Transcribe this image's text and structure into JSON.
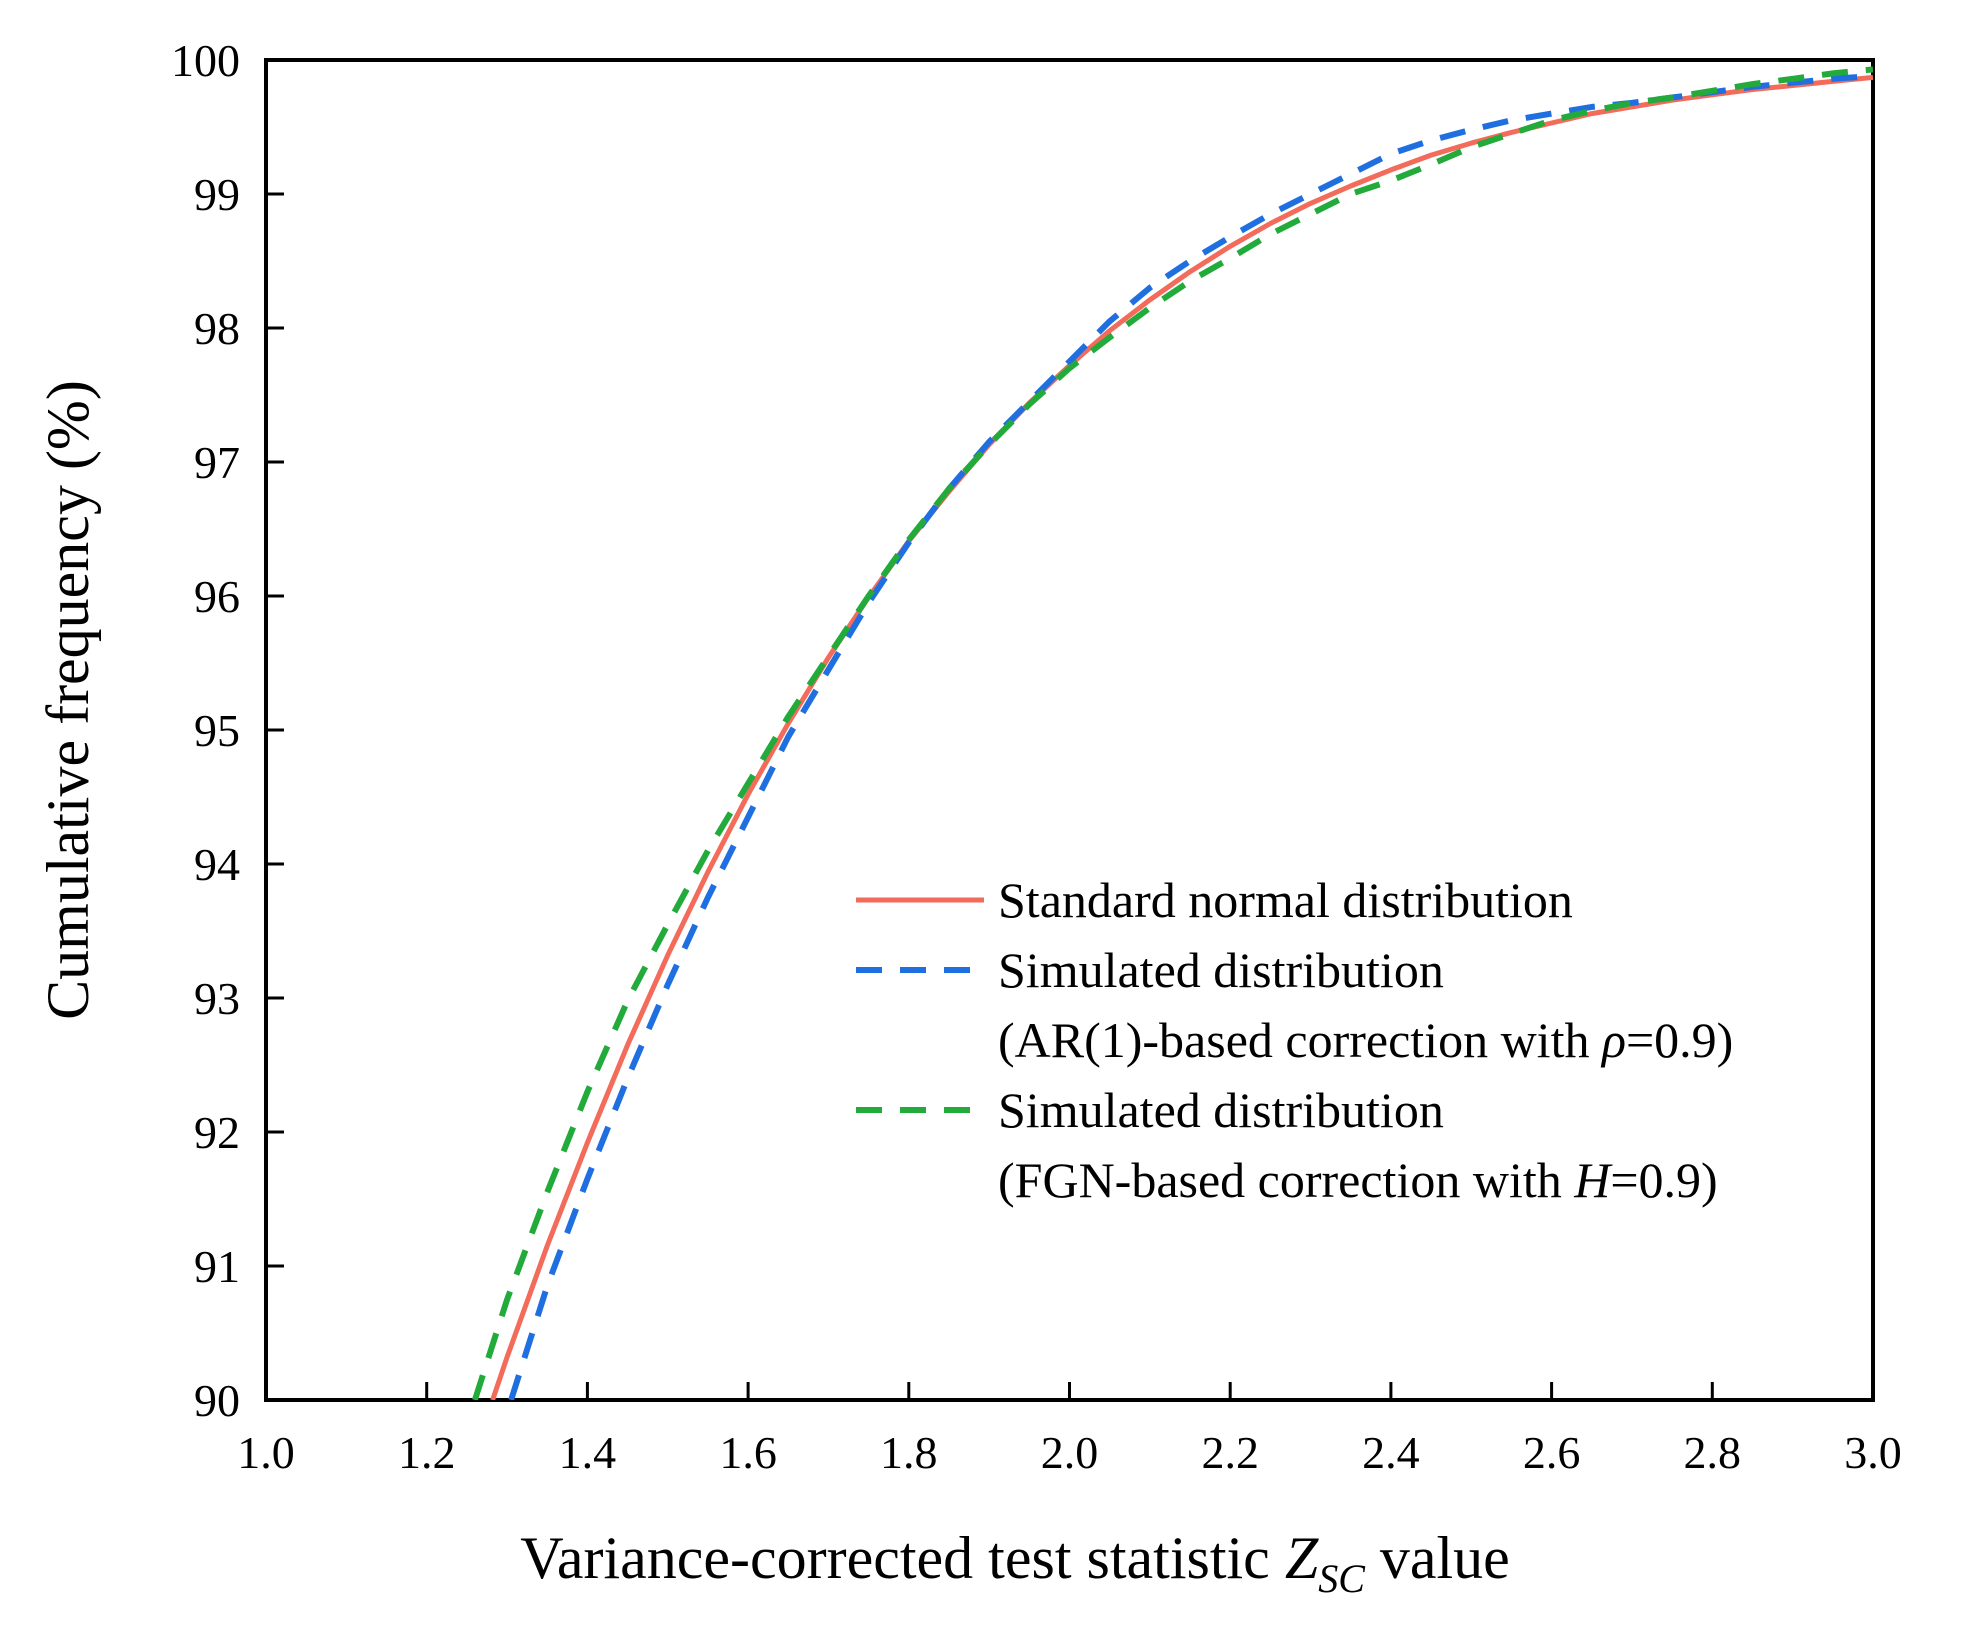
{
  "chart_data": {
    "type": "line",
    "xlabel": {
      "prefix": "Variance-corrected test statistic ",
      "symbol": "Z",
      "subscript": "SC",
      "suffix": " value"
    },
    "ylabel": "Cumulative frequency (%)",
    "xlim": [
      1.0,
      3.0
    ],
    "ylim": [
      90,
      100
    ],
    "x_ticks": [
      1.0,
      1.2,
      1.4,
      1.6,
      1.8,
      2.0,
      2.2,
      2.4,
      2.6,
      2.8,
      3.0
    ],
    "x_tick_labels": [
      "1.0",
      "1.2",
      "1.4",
      "1.6",
      "1.8",
      "2.0",
      "2.2",
      "2.4",
      "2.6",
      "2.8",
      "3.0"
    ],
    "y_ticks": [
      90,
      91,
      92,
      93,
      94,
      95,
      96,
      97,
      98,
      99,
      100
    ],
    "y_tick_labels": [
      "90",
      "91",
      "92",
      "93",
      "94",
      "95",
      "96",
      "97",
      "98",
      "99",
      "100"
    ],
    "grid": false,
    "legend_position": "center-right",
    "series": [
      {
        "name": "Standard normal distribution",
        "style": "solid",
        "color": "#f26b5b",
        "x": [
          1.282,
          1.3,
          1.35,
          1.4,
          1.45,
          1.5,
          1.55,
          1.6,
          1.65,
          1.7,
          1.75,
          1.8,
          1.85,
          1.9,
          1.95,
          2.0,
          2.05,
          2.1,
          2.15,
          2.2,
          2.25,
          2.3,
          2.35,
          2.4,
          2.45,
          2.5,
          2.55,
          2.6,
          2.65,
          2.7,
          2.75,
          2.8,
          2.85,
          2.9,
          2.95,
          3.0
        ],
        "y": [
          90.0,
          90.32,
          91.15,
          91.92,
          92.65,
          93.32,
          93.94,
          94.52,
          95.05,
          95.54,
          95.99,
          96.41,
          96.78,
          97.13,
          97.44,
          97.72,
          97.98,
          98.21,
          98.42,
          98.61,
          98.78,
          98.93,
          99.06,
          99.18,
          99.29,
          99.38,
          99.46,
          99.53,
          99.6,
          99.65,
          99.7,
          99.74,
          99.78,
          99.81,
          99.84,
          99.87
        ]
      },
      {
        "name": "Simulated distribution",
        "name_line2_prefix": "(AR(1)-based correction with ",
        "name_line2_symbol": "ρ",
        "name_line2_suffix": "=0.9)",
        "style": "dashed",
        "color": "#1f6fe0",
        "x": [
          1.305,
          1.35,
          1.4,
          1.45,
          1.5,
          1.55,
          1.6,
          1.65,
          1.7,
          1.75,
          1.8,
          1.85,
          1.9,
          1.95,
          2.0,
          2.05,
          2.1,
          2.15,
          2.2,
          2.25,
          2.3,
          2.35,
          2.4,
          2.45,
          2.5,
          2.55,
          2.6,
          2.65,
          2.7,
          2.75,
          2.8,
          2.85,
          2.9,
          2.95,
          3.0
        ],
        "y": [
          90.0,
          90.85,
          91.65,
          92.4,
          93.1,
          93.75,
          94.35,
          94.95,
          95.45,
          95.95,
          96.4,
          96.8,
          97.15,
          97.45,
          97.75,
          98.05,
          98.3,
          98.5,
          98.68,
          98.85,
          99.0,
          99.15,
          99.3,
          99.4,
          99.48,
          99.55,
          99.6,
          99.65,
          99.68,
          99.72,
          99.76,
          99.8,
          99.83,
          99.86,
          99.88
        ]
      },
      {
        "name": "Simulated distribution",
        "name_line2_prefix": "(FGN-based correction with ",
        "name_line2_symbol": "H",
        "name_line2_suffix": "=0.9)",
        "style": "dashed",
        "color": "#22aa3a",
        "x": [
          1.26,
          1.3,
          1.35,
          1.4,
          1.45,
          1.5,
          1.55,
          1.6,
          1.65,
          1.7,
          1.75,
          1.8,
          1.85,
          1.9,
          1.95,
          2.0,
          2.05,
          2.1,
          2.15,
          2.2,
          2.25,
          2.3,
          2.35,
          2.4,
          2.45,
          2.5,
          2.55,
          2.6,
          2.65,
          2.7,
          2.75,
          2.8,
          2.85,
          2.9,
          2.95,
          3.0
        ],
        "y": [
          90.0,
          90.75,
          91.55,
          92.3,
          92.98,
          93.55,
          94.1,
          94.6,
          95.1,
          95.55,
          96.0,
          96.42,
          96.8,
          97.13,
          97.43,
          97.7,
          97.93,
          98.15,
          98.35,
          98.52,
          98.7,
          98.85,
          99.0,
          99.1,
          99.22,
          99.35,
          99.45,
          99.55,
          99.62,
          99.68,
          99.72,
          99.77,
          99.82,
          99.86,
          99.9,
          99.93
        ]
      }
    ]
  }
}
